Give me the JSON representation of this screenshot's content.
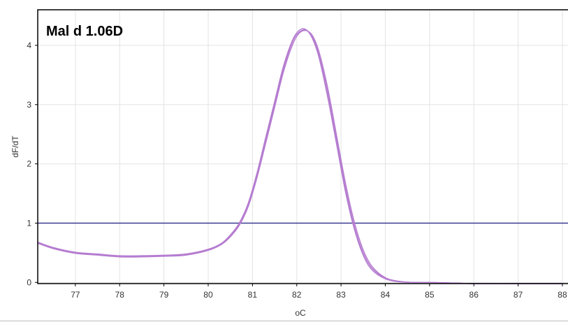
{
  "chart_data": {
    "type": "line",
    "title": "Mal d 1.06D",
    "xlabel": "oC",
    "ylabel": "dF/dT",
    "xlim": [
      76.15,
      88.3
    ],
    "ylim": [
      -0.02,
      4.6
    ],
    "xticks": [
      77,
      78,
      79,
      80,
      81,
      82,
      83,
      84,
      85,
      86,
      87,
      88
    ],
    "yticks": [
      0,
      1,
      2,
      3,
      4
    ],
    "grid": true,
    "threshold": {
      "y": 1.0,
      "color": "#2e2e8c"
    },
    "series_color": "#b57cd0",
    "series": [
      {
        "x": [
          76.15,
          76.5,
          77.0,
          77.5,
          78.0,
          78.5,
          79.0,
          79.5,
          80.0,
          80.3,
          80.5,
          80.7,
          80.9,
          81.1,
          81.3,
          81.5,
          81.7,
          81.9,
          82.05,
          82.2,
          82.35,
          82.5,
          82.7,
          82.9,
          83.1,
          83.3,
          83.5,
          83.7,
          84.0,
          84.3,
          84.6,
          85.0,
          85.5,
          86.0,
          87.0,
          88.0
        ],
        "y": [
          0.67,
          0.58,
          0.5,
          0.47,
          0.44,
          0.44,
          0.45,
          0.47,
          0.55,
          0.65,
          0.78,
          0.98,
          1.3,
          1.8,
          2.4,
          3.0,
          3.6,
          4.05,
          4.22,
          4.26,
          4.15,
          3.85,
          3.2,
          2.4,
          1.6,
          0.95,
          0.5,
          0.24,
          0.07,
          0.02,
          0.0,
          0.0,
          -0.01,
          -0.02,
          -0.02,
          -0.02
        ]
      },
      {
        "x": [
          76.15,
          76.5,
          77.0,
          77.5,
          78.0,
          78.5,
          79.0,
          79.5,
          80.0,
          80.3,
          80.5,
          80.7,
          80.9,
          81.1,
          81.3,
          81.5,
          81.7,
          81.9,
          82.05,
          82.2,
          82.35,
          82.5,
          82.7,
          82.9,
          83.1,
          83.3,
          83.5,
          83.7,
          84.0,
          84.3,
          84.6,
          85.0,
          85.5,
          86.0,
          87.0,
          88.0
        ],
        "y": [
          0.66,
          0.57,
          0.49,
          0.46,
          0.43,
          0.43,
          0.44,
          0.46,
          0.54,
          0.64,
          0.77,
          0.96,
          1.27,
          1.76,
          2.35,
          2.95,
          3.55,
          4.0,
          4.2,
          4.25,
          4.17,
          3.9,
          3.28,
          2.48,
          1.68,
          1.02,
          0.55,
          0.27,
          0.08,
          0.02,
          0.0,
          0.0,
          -0.01,
          -0.02,
          -0.02,
          -0.02
        ]
      },
      {
        "x": [
          76.15,
          76.5,
          77.0,
          77.5,
          78.0,
          78.5,
          79.0,
          79.5,
          80.0,
          80.3,
          80.5,
          80.7,
          80.9,
          81.1,
          81.3,
          81.5,
          81.7,
          81.9,
          82.05,
          82.2,
          82.35,
          82.5,
          82.7,
          82.9,
          83.1,
          83.3,
          83.5,
          83.7,
          84.0,
          84.3,
          84.6,
          85.0,
          85.5,
          86.0,
          87.0,
          88.0
        ],
        "y": [
          0.68,
          0.59,
          0.51,
          0.48,
          0.45,
          0.45,
          0.46,
          0.48,
          0.56,
          0.66,
          0.8,
          1.0,
          1.33,
          1.84,
          2.45,
          3.05,
          3.65,
          4.08,
          4.25,
          4.27,
          4.12,
          3.8,
          3.12,
          2.33,
          1.53,
          0.9,
          0.46,
          0.21,
          0.06,
          0.01,
          0.0,
          0.0,
          -0.01,
          -0.02,
          -0.02,
          -0.02
        ]
      }
    ]
  }
}
